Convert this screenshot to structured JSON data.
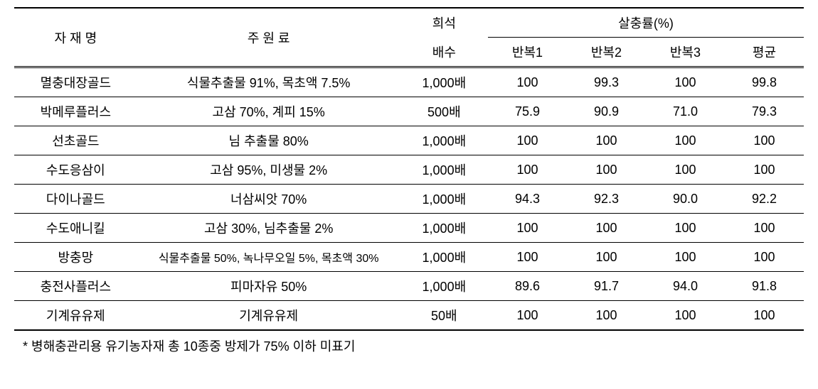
{
  "table": {
    "headers": {
      "name": "자 재 명",
      "ingredient": "주 원 료",
      "dilution_top": "희석",
      "dilution_bottom": "배수",
      "rate_group": "살충률(%)",
      "rep1": "반복1",
      "rep2": "반복2",
      "rep3": "반복3",
      "avg": "평균"
    },
    "rows": [
      {
        "name": "멸충대장골드",
        "ingredient": "식물추출물 91%, 목초액 7.5%",
        "dilution": "1,000배",
        "rep1": "100",
        "rep2": "99.3",
        "rep3": "100",
        "avg": "99.8"
      },
      {
        "name": "박메루플러스",
        "ingredient": "고삼 70%, 계피 15%",
        "dilution": "500배",
        "rep1": "75.9",
        "rep2": "90.9",
        "rep3": "71.0",
        "avg": "79.3"
      },
      {
        "name": "선초골드",
        "ingredient": "님 추출물 80%",
        "dilution": "1,000배",
        "rep1": "100",
        "rep2": "100",
        "rep3": "100",
        "avg": "100"
      },
      {
        "name": "수도응삼이",
        "ingredient": "고삼 95%, 미생물 2%",
        "dilution": "1,000배",
        "rep1": "100",
        "rep2": "100",
        "rep3": "100",
        "avg": "100"
      },
      {
        "name": "다이나골드",
        "ingredient": "너삼씨앗 70%",
        "dilution": "1,000배",
        "rep1": "94.3",
        "rep2": "92.3",
        "rep3": "90.0",
        "avg": "92.2"
      },
      {
        "name": "수도애니킬",
        "ingredient": "고삼 30%, 님추출물 2%",
        "dilution": "1,000배",
        "rep1": "100",
        "rep2": "100",
        "rep3": "100",
        "avg": "100"
      },
      {
        "name": "방충망",
        "ingredient": "식물추출물 50%, 녹나무오일 5%, 목초액 30%",
        "dilution": "1,000배",
        "rep1": "100",
        "rep2": "100",
        "rep3": "100",
        "avg": "100",
        "small": true
      },
      {
        "name": "충전사플러스",
        "ingredient": "피마자유 50%",
        "dilution": "1,000배",
        "rep1": "89.6",
        "rep2": "91.7",
        "rep3": "94.0",
        "avg": "91.8"
      },
      {
        "name": "기계유유제",
        "ingredient": "기계유유제",
        "dilution": "50배",
        "rep1": "100",
        "rep2": "100",
        "rep3": "100",
        "avg": "100"
      }
    ],
    "footnote": "* 병해충관리용 유기농자재 총 10종중 방제가 75% 이하 미표기"
  },
  "styling": {
    "font_size_body": 18,
    "font_size_small": 16,
    "border_top_width": 2,
    "border_bottom_width": 2,
    "row_border_width": 1,
    "background_color": "#ffffff",
    "text_color": "#000000",
    "border_color": "#000000",
    "column_widths_pct": {
      "name": 14,
      "ingredient": 30,
      "dilution": 10,
      "rep": 9
    }
  }
}
